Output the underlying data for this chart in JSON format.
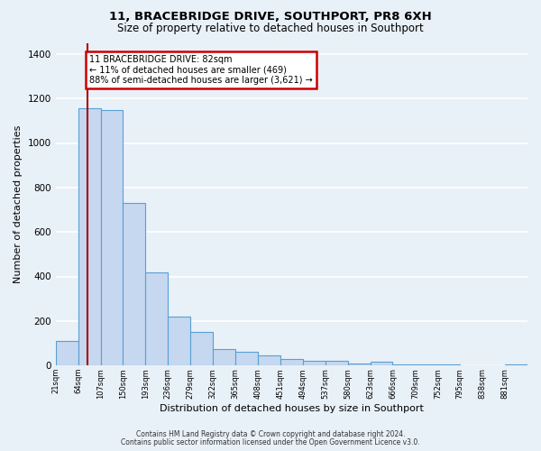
{
  "title": "11, BRACEBRIDGE DRIVE, SOUTHPORT, PR8 6XH",
  "subtitle": "Size of property relative to detached houses in Southport",
  "xlabel": "Distribution of detached houses by size in Southport",
  "ylabel": "Number of detached properties",
  "bar_labels": [
    "21sqm",
    "64sqm",
    "107sqm",
    "150sqm",
    "193sqm",
    "236sqm",
    "279sqm",
    "322sqm",
    "365sqm",
    "408sqm",
    "451sqm",
    "494sqm",
    "537sqm",
    "580sqm",
    "623sqm",
    "666sqm",
    "709sqm",
    "752sqm",
    "795sqm",
    "838sqm",
    "881sqm"
  ],
  "bar_heights": [
    110,
    1155,
    1150,
    730,
    420,
    220,
    150,
    75,
    60,
    45,
    30,
    20,
    20,
    10,
    15,
    5,
    5,
    5,
    0,
    0,
    5
  ],
  "bar_color": "#c5d8f0",
  "bar_edge_color": "#5a9fd4",
  "annotation_title": "11 BRACEBRIDGE DRIVE: 82sqm",
  "annotation_line1": "← 11% of detached houses are smaller (469)",
  "annotation_line2": "88% of semi-detached houses are larger (3,621) →",
  "annotation_box_color": "#ffffff",
  "annotation_box_edge_color": "#cc0000",
  "ylim": [
    0,
    1450
  ],
  "yticks": [
    0,
    200,
    400,
    600,
    800,
    1000,
    1200,
    1400
  ],
  "footer_line1": "Contains HM Land Registry data © Crown copyright and database right 2024.",
  "footer_line2": "Contains public sector information licensed under the Open Government Licence v3.0.",
  "background_color": "#e8f0f8",
  "plot_background": "#e8f0f8",
  "grid_color": "#ffffff",
  "property_sqm": 82,
  "bin_starts": [
    21,
    64,
    107,
    150,
    193,
    236,
    279,
    322,
    365,
    408,
    451,
    494,
    537,
    580,
    623,
    666,
    709,
    752,
    795,
    838,
    881
  ],
  "bin_width": 43
}
